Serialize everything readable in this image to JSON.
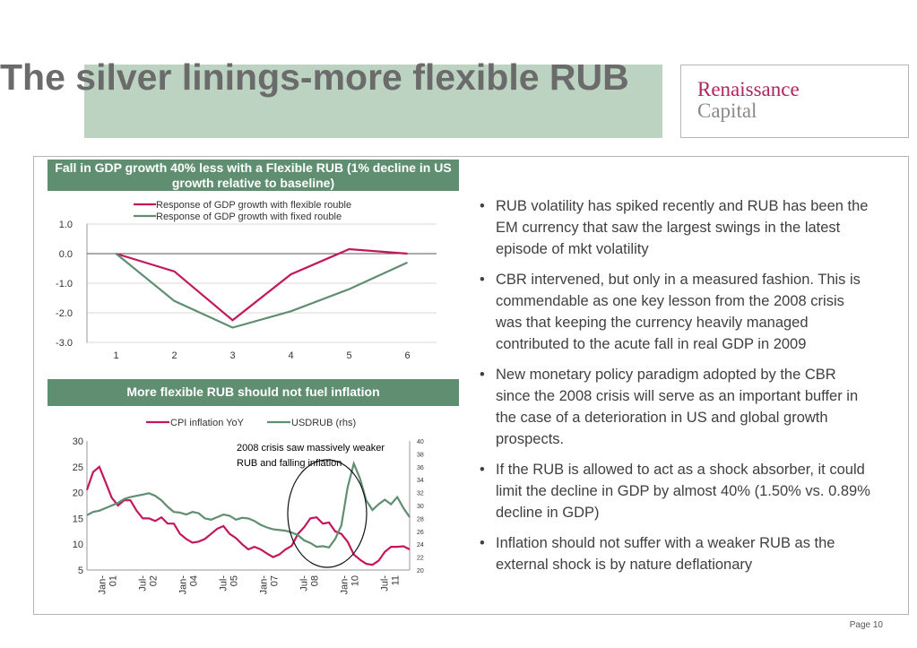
{
  "slide": {
    "title": "The silver linings-more flexible RUB",
    "logo_line1": "Renaissance",
    "logo_line2": "Capital",
    "page_label": "Page 10",
    "colors": {
      "accent_green": "#5f8e71",
      "title_band": "#bcd3c2",
      "brand_magenta": "#b0245d"
    }
  },
  "chart1_header": "Fall in GDP growth 40% less with a  Flexible RUB (1% decline in US growth relative to baseline)",
  "chart2_header": "More flexible RUB should not fuel inflation",
  "chart_data": [
    {
      "type": "line",
      "x": [
        1,
        2,
        3,
        4,
        5,
        6
      ],
      "ylim": [
        -3.0,
        1.0
      ],
      "yticks": [
        "1.0",
        "0.0",
        "-1.0",
        "-2.0",
        "-3.0"
      ],
      "xticks": [
        "1",
        "2",
        "3",
        "4",
        "5",
        "6"
      ],
      "grid": true,
      "legend_position": "top",
      "series": [
        {
          "name": "Response of GDP growth with flexible rouble",
          "color": "#c2185b",
          "values": [
            0.0,
            -0.6,
            -2.25,
            -0.7,
            0.15,
            0.0
          ]
        },
        {
          "name": "Response of GDP growth with fixed rouble",
          "color": "#5f8e71",
          "values": [
            0.0,
            -1.6,
            -2.5,
            -1.95,
            -1.2,
            -0.3
          ]
        }
      ]
    },
    {
      "type": "line",
      "x_labels": [
        "Jan-01",
        "Jul-02",
        "Jan-04",
        "Jul-05",
        "Jan-07",
        "Jul-08",
        "Jan-10",
        "Jul-11"
      ],
      "x_range": [
        "Jan-01",
        "Oct-11"
      ],
      "ylim": [
        5,
        30
      ],
      "yticks": [
        "30",
        "25",
        "20",
        "15",
        "10",
        "5"
      ],
      "y2lim": [
        20,
        40
      ],
      "y2ticks": [
        "40",
        "38",
        "36",
        "34",
        "32",
        "30",
        "28",
        "26",
        "24",
        "22",
        "20"
      ],
      "legend_position": "top",
      "annotation": "2008 crisis saw massively weaker RUB and falling inflation",
      "series": [
        {
          "name": "CPI inflation YoY",
          "color": "#c2185b",
          "axis": "left",
          "values": [
            20.5,
            24,
            25,
            22,
            19,
            17.5,
            18.5,
            18.5,
            16.5,
            15,
            15,
            14.5,
            15.2,
            14,
            14,
            12,
            11,
            10.3,
            10.5,
            11,
            12,
            13,
            13.5,
            12,
            11.2,
            10,
            9,
            9.5,
            9,
            8.2,
            7.5,
            8,
            9,
            9.7,
            12,
            13.3,
            15,
            15.2,
            14,
            14.2,
            12.5,
            12,
            10.5,
            8,
            7,
            6.2,
            6,
            6.8,
            8.5,
            9.5,
            9.5,
            9.6,
            9
          ]
        },
        {
          "name": "USDRUB (rhs)",
          "color": "#5f8e71",
          "axis": "right",
          "values": [
            28.5,
            29,
            29.2,
            29.6,
            30,
            30.4,
            31,
            31.3,
            31.5,
            31.7,
            31.9,
            31.5,
            30.8,
            29.8,
            29,
            28.9,
            28.6,
            29,
            28.8,
            28,
            27.8,
            28.2,
            28.6,
            28.4,
            27.8,
            28.1,
            28,
            27.6,
            27,
            26.6,
            26.3,
            26.2,
            26.1,
            25.8,
            25.4,
            24.6,
            24.2,
            23.6,
            23.7,
            23.5,
            24.8,
            26.9,
            32.8,
            36.5,
            34.2,
            30.8,
            29.3,
            30.2,
            30.9,
            30.2,
            31.3,
            29.6,
            28.2
          ]
        }
      ]
    }
  ],
  "bullets": [
    "RUB volatility has spiked recently and RUB has been the EM currency that saw the largest swings in the latest episode of mkt volatility",
    "CBR intervened, but only in a measured fashion. This is commendable as one key lesson from the 2008 crisis was that keeping the currency heavily managed contributed to the acute fall in real GDP in 2009",
    "New monetary policy paradigm adopted by the CBR since the 2008 crisis will serve as an important buffer in the case of a deterioration in US and global growth prospects.",
    "If the RUB is allowed to act as a shock absorber, it could limit the decline in GDP by almost 40% (1.50% vs. 0.89% decline in GDP)",
    "Inflation should not suffer with a weaker RUB as the external shock is by nature deflationary"
  ]
}
